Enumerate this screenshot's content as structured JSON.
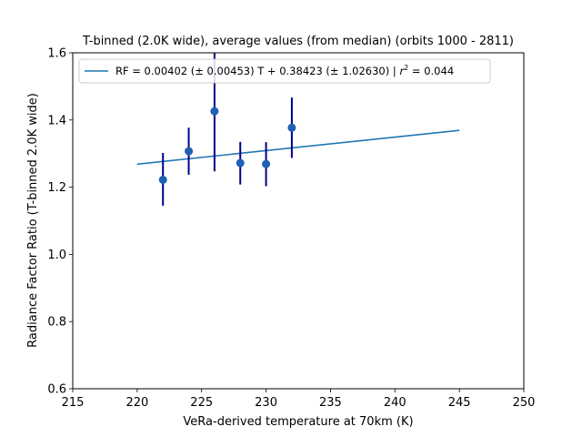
{
  "chart_data": {
    "type": "scatter",
    "title": "T-binned (2.0K wide), average values (from median) (orbits 1000 - 2811)",
    "xlabel": "VeRa-derived temperature at 70km (K)",
    "ylabel": "Radiance Factor Ratio (T-binned 2.0K wide)",
    "xlim": [
      215,
      250
    ],
    "ylim": [
      0.6,
      1.6
    ],
    "xticks": [
      215,
      220,
      225,
      230,
      235,
      240,
      245,
      250
    ],
    "yticks": [
      0.6,
      0.8,
      1.0,
      1.2,
      1.4,
      1.6
    ],
    "grid": false,
    "legend_position": "top-left",
    "points": {
      "x": [
        222,
        224,
        226,
        228,
        230,
        232
      ],
      "y": [
        1.222,
        1.307,
        1.426,
        1.272,
        1.269,
        1.377
      ],
      "yerr_low": [
        1.145,
        1.237,
        1.247,
        1.208,
        1.203,
        1.287
      ],
      "yerr_high": [
        1.302,
        1.377,
        1.6,
        1.335,
        1.334,
        1.467
      ],
      "color": "#1f5fb4",
      "errorbar_color": "#00008b"
    },
    "fit_line": {
      "name": "RF = 0.00402 (± 0.00453) T + 0.38423 (± 1.02630) | ",
      "r2_symbol": "r",
      "r2_exponent": "2",
      "r2_value": " = 0.044",
      "slope": 0.00402,
      "intercept": 0.38423,
      "x_range": [
        220,
        245
      ],
      "color": "#1f77b4"
    }
  }
}
